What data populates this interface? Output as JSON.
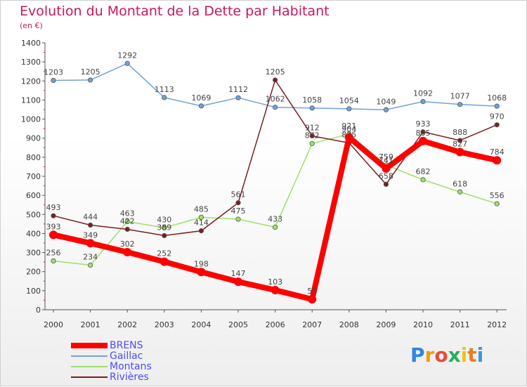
{
  "title": "Evolution du Montant de la Dette par Habitant",
  "subtitle": "(en €)",
  "logo": {
    "text": "Proxiti",
    "colors": [
      "#2e86de",
      "#f39c12",
      "#e74c3c",
      "#27ae60",
      "#f1c40f",
      "#e67e22",
      "#3498db"
    ]
  },
  "chart_data": {
    "type": "line",
    "title": "Evolution du Montant de la Dette par Habitant",
    "subtitle": "(en €)",
    "xlabel": "",
    "ylabel": "",
    "categories": [
      "2000",
      "2001",
      "2002",
      "2003",
      "2004",
      "2005",
      "2006",
      "2007",
      "2008",
      "2009",
      "2010",
      "2011",
      "2012"
    ],
    "yticks": [
      0,
      100,
      200,
      300,
      400,
      500,
      600,
      700,
      800,
      900,
      1000,
      1100,
      1200,
      1300,
      1400
    ],
    "ylim": [
      0,
      1400
    ],
    "grid": false,
    "legend_position": "bottom-left",
    "series": [
      {
        "name": "BRENS",
        "color": "#ff0000",
        "values": [
          393,
          349,
          302,
          252,
          198,
          147,
          103,
          55,
          904,
          741,
          885,
          827,
          784
        ],
        "labels": [
          "393",
          "349",
          "302",
          "252",
          "198",
          "147",
          "103",
          "55",
          "904",
          "741",
          "885",
          "827",
          "784"
        ]
      },
      {
        "name": "Gaillac",
        "color": "#6fa3d8",
        "values": [
          1203,
          1205,
          1292,
          1113,
          1069,
          1112,
          1062,
          1058,
          1054,
          1049,
          1092,
          1077,
          1068
        ],
        "labels": [
          "1203",
          "1205",
          "1292",
          "1113",
          "1069",
          "1112",
          "1062",
          "1058",
          "1054",
          "1049",
          "1092",
          "1077",
          "1068"
        ]
      },
      {
        "name": "Montans",
        "color": "#9ee06a",
        "values": [
          256,
          234,
          463,
          430,
          485,
          475,
          433,
          872,
          921,
          759,
          682,
          618,
          556
        ],
        "labels": [
          "256",
          "234",
          "463",
          "430",
          "485",
          "475",
          "433",
          "872",
          "921",
          "759",
          "682",
          "618",
          "556"
        ]
      },
      {
        "name": "Rivières",
        "color": "#7a1f1f",
        "values": [
          493,
          444,
          422,
          389,
          414,
          561,
          1205,
          912,
          875,
          658,
          933,
          888,
          970
        ],
        "labels": [
          "493",
          "444",
          "422",
          "389",
          "414",
          "561",
          "1205",
          "912",
          "875",
          "658",
          "933",
          "888",
          "970"
        ]
      }
    ]
  }
}
